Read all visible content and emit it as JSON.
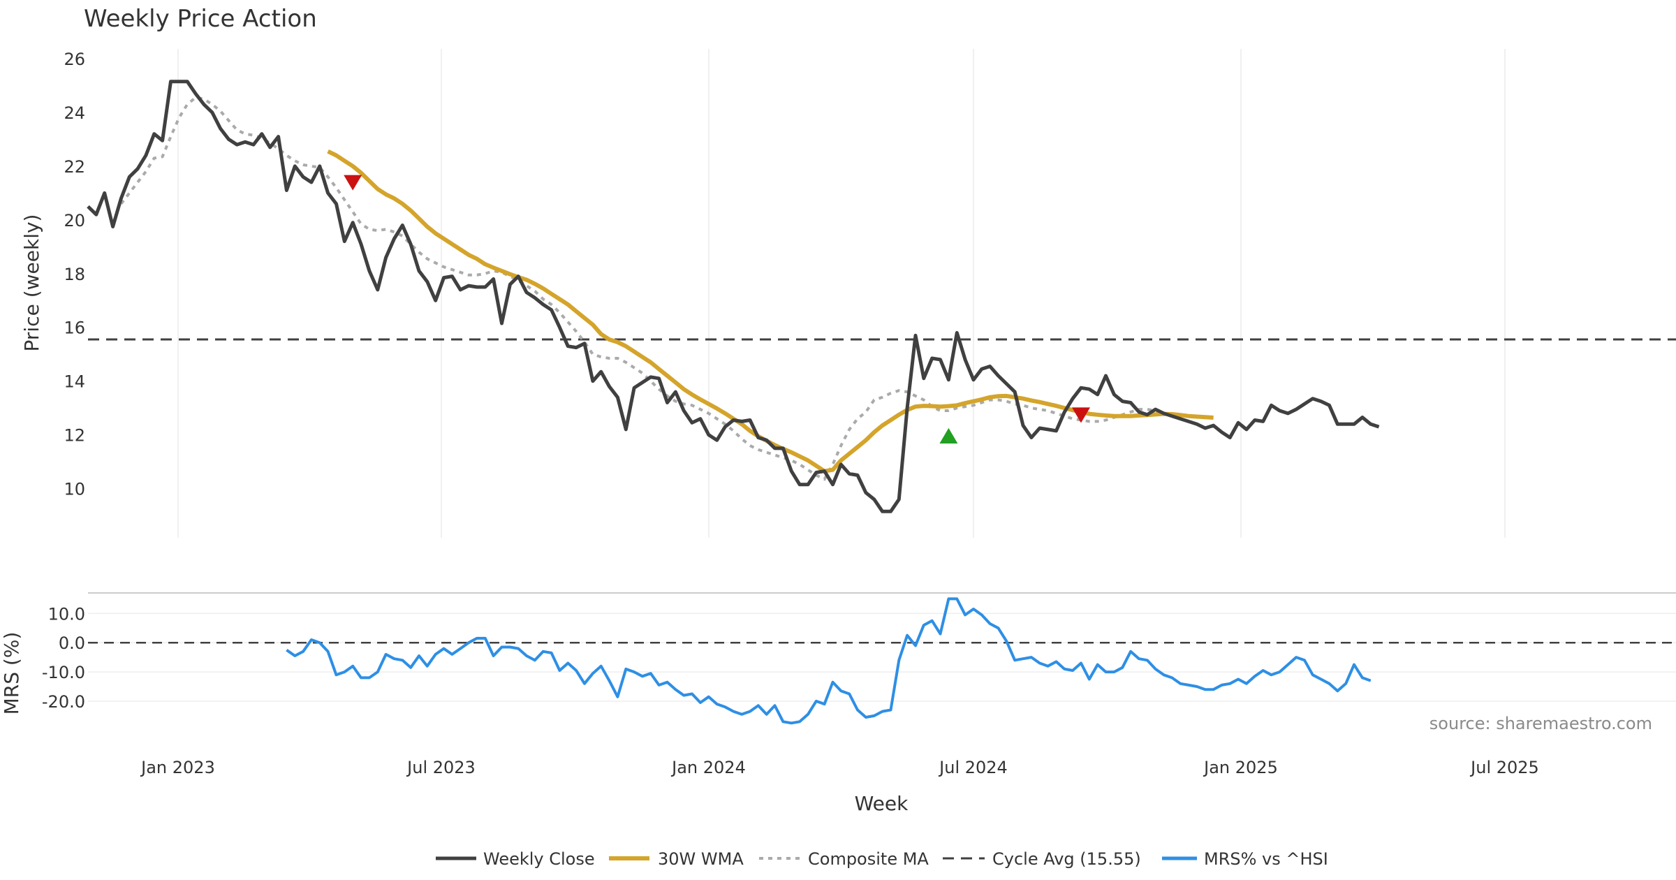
{
  "chart_data": {
    "type": "line",
    "title": "Weekly Price Action",
    "xlabel": "Week",
    "source_note": "source: sharemaestro.com",
    "x_ticks": [
      "Jan 2023",
      "Jul 2023",
      "Jan 2024",
      "Jul 2024",
      "Jan 2025",
      "Jul 2025"
    ],
    "price_panel": {
      "ylabel": "Price (weekly)",
      "ylim": [
        8.3,
        26
      ],
      "yticks": [
        "10",
        "12",
        "14",
        "16",
        "18",
        "20",
        "22",
        "24",
        "26"
      ],
      "series": [
        {
          "name": "Weekly Close",
          "color": "#404040",
          "values": [
            20.5,
            20.2,
            21.0,
            19.75,
            20.8,
            21.6,
            21.9,
            22.4,
            23.2,
            22.95,
            25.15,
            25.15,
            25.15,
            24.7,
            24.3,
            24.0,
            23.4,
            23.0,
            22.8,
            22.9,
            22.8,
            23.2,
            22.7,
            23.1,
            21.1,
            22.0,
            21.6,
            21.4,
            22.0,
            21.0,
            20.6,
            19.2,
            19.9,
            19.1,
            18.1,
            17.4,
            18.6,
            19.3,
            19.8,
            19.1,
            18.1,
            17.7,
            17.0,
            17.85,
            17.9,
            17.4,
            17.55,
            17.5,
            17.5,
            17.8,
            16.15,
            17.6,
            17.9,
            17.3,
            17.1,
            16.85,
            16.65,
            16.0,
            15.3,
            15.25,
            15.4,
            14.0,
            14.35,
            13.8,
            13.4,
            12.2,
            13.75,
            13.95,
            14.15,
            14.1,
            13.2,
            13.6,
            12.9,
            12.45,
            12.6,
            12.0,
            11.8,
            12.3,
            12.55,
            12.5,
            12.55,
            11.9,
            11.8,
            11.5,
            11.5,
            10.65,
            10.15,
            10.15,
            10.6,
            10.65,
            10.15,
            10.9,
            10.55,
            10.5,
            9.85,
            9.6,
            9.15,
            9.15,
            9.6,
            13.0,
            15.7,
            14.1,
            14.85,
            14.8,
            14.05,
            15.8,
            14.8,
            14.05,
            14.45,
            14.55,
            14.2,
            13.9,
            13.6,
            12.35,
            11.9,
            12.25,
            12.2,
            12.15,
            12.85,
            13.35,
            13.75,
            13.7,
            13.5,
            14.2,
            13.5,
            13.25,
            13.2,
            12.85,
            12.75,
            12.95,
            12.8,
            12.7,
            12.6,
            12.5,
            12.4,
            12.25,
            12.35,
            12.1,
            11.9,
            12.45,
            12.2,
            12.55,
            12.5,
            13.1,
            12.9,
            12.8,
            12.95,
            13.15,
            13.35,
            13.25,
            13.1,
            12.4,
            12.4,
            12.4,
            12.65,
            12.4,
            12.3
          ]
        },
        {
          "name": "30W WMA",
          "color": "#D4A42B",
          "start_index": 29,
          "values": [
            22.55,
            22.4,
            22.2,
            22.0,
            21.75,
            21.45,
            21.15,
            20.95,
            20.8,
            20.6,
            20.35,
            20.05,
            19.75,
            19.5,
            19.3,
            19.1,
            18.9,
            18.7,
            18.55,
            18.35,
            18.22,
            18.1,
            17.98,
            17.87,
            17.77,
            17.62,
            17.45,
            17.25,
            17.05,
            16.85,
            16.6,
            16.35,
            16.1,
            15.75,
            15.55,
            15.45,
            15.3,
            15.1,
            14.9,
            14.7,
            14.45,
            14.2,
            13.95,
            13.7,
            13.5,
            13.32,
            13.15,
            12.98,
            12.8,
            12.6,
            12.4,
            12.15,
            11.95,
            11.78,
            11.62,
            11.48,
            11.35,
            11.2,
            11.05,
            10.85,
            10.65,
            10.7,
            11.05,
            11.3,
            11.55,
            11.8,
            12.1,
            12.35,
            12.55,
            12.75,
            12.93,
            13.05,
            13.08,
            13.07,
            13.05,
            13.07,
            13.1,
            13.18,
            13.25,
            13.32,
            13.4,
            13.44,
            13.45,
            13.4,
            13.35,
            13.28,
            13.22,
            13.15,
            13.08,
            13.0,
            12.92,
            12.85,
            12.78,
            12.75,
            12.72,
            12.7,
            12.7,
            12.7,
            12.72,
            12.74,
            12.76,
            12.78,
            12.77,
            12.74,
            12.7,
            12.68,
            12.66,
            12.64
          ]
        },
        {
          "name": "Composite MA",
          "color": "#aaaaaa",
          "start_index": 4,
          "values": [
            20.6,
            21.0,
            21.4,
            21.8,
            22.3,
            22.35,
            23.1,
            23.8,
            24.3,
            24.55,
            24.5,
            24.3,
            24.05,
            23.7,
            23.35,
            23.2,
            23.15,
            23.05,
            22.85,
            22.65,
            22.4,
            22.2,
            22.05,
            22.0,
            21.95,
            21.6,
            21.2,
            20.75,
            20.3,
            19.85,
            19.65,
            19.6,
            19.65,
            19.55,
            19.4,
            19.1,
            18.8,
            18.55,
            18.4,
            18.25,
            18.15,
            18.05,
            17.95,
            17.95,
            18.0,
            18.1,
            18.05,
            17.9,
            17.75,
            17.55,
            17.35,
            17.05,
            16.85,
            16.55,
            16.2,
            15.85,
            15.45,
            15.0,
            14.9,
            14.85,
            14.85,
            14.7,
            14.5,
            14.3,
            14.0,
            13.7,
            13.45,
            13.25,
            13.15,
            13.1,
            12.95,
            12.8,
            12.6,
            12.4,
            12.15,
            11.85,
            11.6,
            11.45,
            11.35,
            11.25,
            11.15,
            11.05,
            10.9,
            10.7,
            10.5,
            10.35,
            10.9,
            11.6,
            12.2,
            12.6,
            12.85,
            13.3,
            13.4,
            13.55,
            13.65,
            13.6,
            13.45,
            13.3,
            13.05,
            12.9,
            12.9,
            13.0,
            13.05,
            13.1,
            13.2,
            13.3,
            13.3,
            13.25,
            13.15,
            13.1,
            13.0,
            12.95,
            12.9,
            12.8,
            12.7,
            12.6,
            12.55,
            12.5,
            12.5,
            12.55,
            12.65,
            12.75,
            12.85,
            12.95,
            12.95,
            12.9,
            12.8
          ]
        }
      ],
      "reference_line": {
        "name": "Cycle Avg (15.55)",
        "value": 15.55,
        "color": "#404040"
      },
      "markers": [
        {
          "type": "sell",
          "index": 32,
          "value": 21.4,
          "color": "#cc1111"
        },
        {
          "type": "buy",
          "index": 104,
          "value": 11.95,
          "color": "#22a022"
        },
        {
          "type": "sell",
          "index": 120,
          "value": 12.75,
          "color": "#cc1111"
        }
      ]
    },
    "mrs_panel": {
      "ylabel": "MRS (%)",
      "ylim": [
        -31,
        17
      ],
      "yticks": [
        "10.0",
        "0.0",
        "-10.0",
        "-20.0"
      ],
      "reference_value": 0,
      "series": [
        {
          "name": "MRS% vs ^HSI",
          "color": "#2E8FE5",
          "start_index": 24,
          "values": [
            -2.5,
            -4.5,
            -3.0,
            1.0,
            0.0,
            -3.0,
            -11.0,
            -10.0,
            -8.0,
            -12.0,
            -12.0,
            -10.0,
            -4.0,
            -5.5,
            -6.0,
            -8.5,
            -4.5,
            -8.0,
            -4.0,
            -2.0,
            -4.0,
            -2.0,
            0.0,
            1.5,
            1.5,
            -4.5,
            -1.5,
            -1.5,
            -2.0,
            -4.5,
            -6.0,
            -3.0,
            -3.5,
            -9.5,
            -7.0,
            -9.5,
            -14.0,
            -10.5,
            -8.0,
            -13.0,
            -18.5,
            -9.0,
            -10.0,
            -11.5,
            -10.5,
            -14.5,
            -13.5,
            -16.0,
            -18.0,
            -17.5,
            -20.5,
            -18.5,
            -21.0,
            -22.0,
            -23.5,
            -24.5,
            -23.5,
            -21.5,
            -24.5,
            -21.5,
            -27.0,
            -27.5,
            -27.0,
            -24.5,
            -20.0,
            -21.0,
            -13.5,
            -16.5,
            -17.5,
            -23.0,
            -25.5,
            -25.0,
            -23.5,
            -23.0,
            -6.0,
            2.5,
            -1.0,
            6.0,
            7.5,
            3.0,
            15.0,
            15.0,
            9.5,
            11.5,
            9.5,
            6.5,
            5.0,
            0.5,
            -6.0,
            -5.5,
            -5.0,
            -7.0,
            -8.0,
            -6.5,
            -9.0,
            -9.5,
            -7.0,
            -12.5,
            -7.5,
            -10.0,
            -10.0,
            -8.5,
            -3.0,
            -5.5,
            -6.0,
            -9.0,
            -11.0,
            -12.0,
            -14.0,
            -14.5,
            -15.0,
            -16.0,
            -16.0,
            -14.5,
            -14.0,
            -12.5,
            -14.0,
            -11.5,
            -9.5,
            -11.0,
            -10.0,
            -7.5,
            -5.0,
            -6.0,
            -11.0,
            -12.5,
            -14.0,
            -16.5,
            -14.0,
            -7.5,
            -12.0,
            -13.0
          ]
        }
      ]
    },
    "legend": {
      "position": "bottom-center",
      "entries": [
        "Weekly Close",
        "30W WMA",
        "Composite MA",
        "Cycle Avg (15.55)",
        "MRS% vs ^HSI"
      ]
    }
  }
}
